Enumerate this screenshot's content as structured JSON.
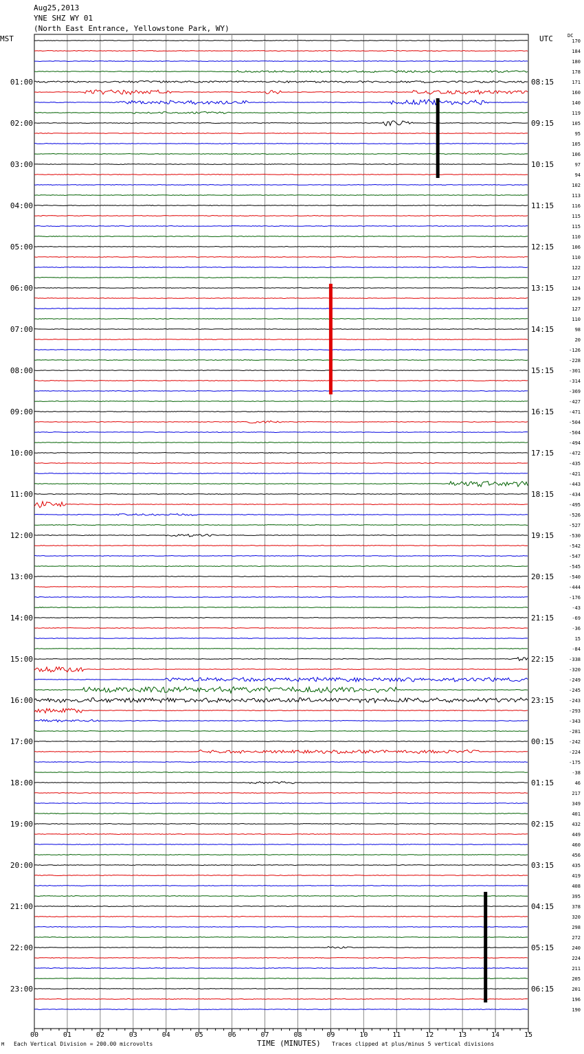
{
  "header": {
    "date": "Aug25,2013",
    "station": "YNE SHZ WY 01",
    "location": "(North East Entrance, Yellowstone Park, WY)"
  },
  "labels": {
    "left_tz": "MST",
    "right_tz": "UTC",
    "dc": "DC"
  },
  "footer": {
    "scale": "Each Vertical Division =  200.00 microvolts",
    "time_label": "TIME (MINUTES)",
    "clip_note": "Traces clipped at plus/minus 5 vertical divisions",
    "logo": "M"
  },
  "colors": {
    "trace_cycle": [
      "#000000",
      "#e00000",
      "#0000e0",
      "#006000"
    ],
    "grid": "#888888",
    "background": "#ffffff"
  },
  "chart_data": {
    "type": "line",
    "title": "YNE SHZ WY 01",
    "xlabel": "TIME (MINUTES)",
    "x_ticks": [
      "00",
      "01",
      "02",
      "03",
      "04",
      "05",
      "06",
      "07",
      "08",
      "09",
      "10",
      "11",
      "12",
      "13",
      "14",
      "15"
    ],
    "xlim": [
      0,
      15
    ],
    "traces_per_hour": 4,
    "minutes_per_trace": 15,
    "left_hour_labels": [
      "01:00",
      "02:00",
      "03:00",
      "04:00",
      "05:00",
      "06:00",
      "07:00",
      "08:00",
      "09:00",
      "10:00",
      "11:00",
      "12:00",
      "13:00",
      "14:00",
      "15:00",
      "16:00",
      "17:00",
      "18:00",
      "19:00",
      "20:00",
      "21:00",
      "22:00",
      "23:00"
    ],
    "right_hour_labels": [
      "08:15",
      "09:15",
      "10:15",
      "11:15",
      "12:15",
      "13:15",
      "14:15",
      "15:15",
      "16:15",
      "17:15",
      "18:15",
      "19:15",
      "20:15",
      "21:15",
      "22:15",
      "23:15",
      "00:15",
      "01:15",
      "02:15",
      "03:15",
      "04:15",
      "05:15",
      "06:15"
    ],
    "dc_offsets": [
      "170",
      "184",
      "180",
      "178",
      "171",
      "160",
      "140",
      "119",
      "105",
      "95",
      "105",
      "106",
      "97",
      "94",
      "102",
      "113",
      "116",
      "115",
      "115",
      "110",
      "106",
      "110",
      "122",
      "127",
      "124",
      "129",
      "127",
      "110",
      "98",
      "20",
      "-126",
      "-228",
      "-301",
      "-314",
      "-369",
      "-427",
      "-471",
      "-504",
      "-504",
      "-494",
      "-472",
      "-435",
      "-421",
      "-443",
      "-434",
      "-495",
      "-526",
      "-527",
      "-530",
      "-542",
      "-547",
      "-545",
      "-540",
      "-444",
      "-176",
      "-43",
      "-69",
      "-36",
      "15",
      "-84",
      "-338",
      "-320",
      "-249",
      "-245",
      "-243",
      "-293",
      "-343",
      "-281",
      "-242",
      "-224",
      "-175",
      "-38",
      "46",
      "217",
      "349",
      "401",
      "432",
      "449",
      "460",
      "456",
      "435",
      "419",
      "408",
      "395",
      "378",
      "320",
      "298",
      "272",
      "240",
      "224",
      "211",
      "205",
      "201",
      "196",
      "190"
    ],
    "clipped_events": [
      {
        "trace_start": 6,
        "trace_end": 13,
        "minute": 12.25,
        "color": "black"
      },
      {
        "trace_start": 24,
        "trace_end": 34,
        "minute": 9.0,
        "color": "red"
      },
      {
        "trace_start": 83,
        "trace_end": 93,
        "minute": 13.7,
        "color": "black"
      }
    ],
    "noise_segments": [
      {
        "trace": 4,
        "from": 0,
        "to": 15,
        "level": 3
      },
      {
        "trace": 5,
        "from": 1.5,
        "to": 4.2,
        "level": 7
      },
      {
        "trace": 5,
        "from": 7,
        "to": 7.5,
        "level": 6
      },
      {
        "trace": 5,
        "from": 11.5,
        "to": 15,
        "level": 6
      },
      {
        "trace": 6,
        "from": 2.5,
        "to": 6.5,
        "level": 6
      },
      {
        "trace": 6,
        "from": 10.8,
        "to": 13.8,
        "level": 8
      },
      {
        "trace": 3,
        "from": 6,
        "to": 15,
        "level": 3
      },
      {
        "trace": 7,
        "from": 3,
        "to": 6,
        "level": 3
      },
      {
        "trace": 8,
        "from": 10.5,
        "to": 11.5,
        "level": 9
      },
      {
        "trace": 37,
        "from": 6.5,
        "to": 7.5,
        "level": 4
      },
      {
        "trace": 43,
        "from": 12.6,
        "to": 15,
        "level": 8
      },
      {
        "trace": 45,
        "from": 0,
        "to": 1,
        "level": 10
      },
      {
        "trace": 46,
        "from": 2.5,
        "to": 5,
        "level": 3
      },
      {
        "trace": 48,
        "from": 4,
        "to": 5.5,
        "level": 4
      },
      {
        "trace": 60,
        "from": 14.6,
        "to": 15,
        "level": 6
      },
      {
        "trace": 61,
        "from": 0,
        "to": 1.5,
        "level": 9
      },
      {
        "trace": 62,
        "from": 4,
        "to": 15,
        "level": 6
      },
      {
        "trace": 63,
        "from": 1.5,
        "to": 11,
        "level": 9
      },
      {
        "trace": 64,
        "from": 0,
        "to": 15,
        "level": 7
      },
      {
        "trace": 65,
        "from": 0,
        "to": 1.5,
        "level": 7
      },
      {
        "trace": 66,
        "from": 0,
        "to": 2,
        "level": 4
      },
      {
        "trace": 69,
        "from": 5,
        "to": 13.5,
        "level": 5
      },
      {
        "trace": 72,
        "from": 6.5,
        "to": 8,
        "level": 3
      },
      {
        "trace": 88,
        "from": 8.9,
        "to": 9.8,
        "level": 3
      }
    ]
  }
}
